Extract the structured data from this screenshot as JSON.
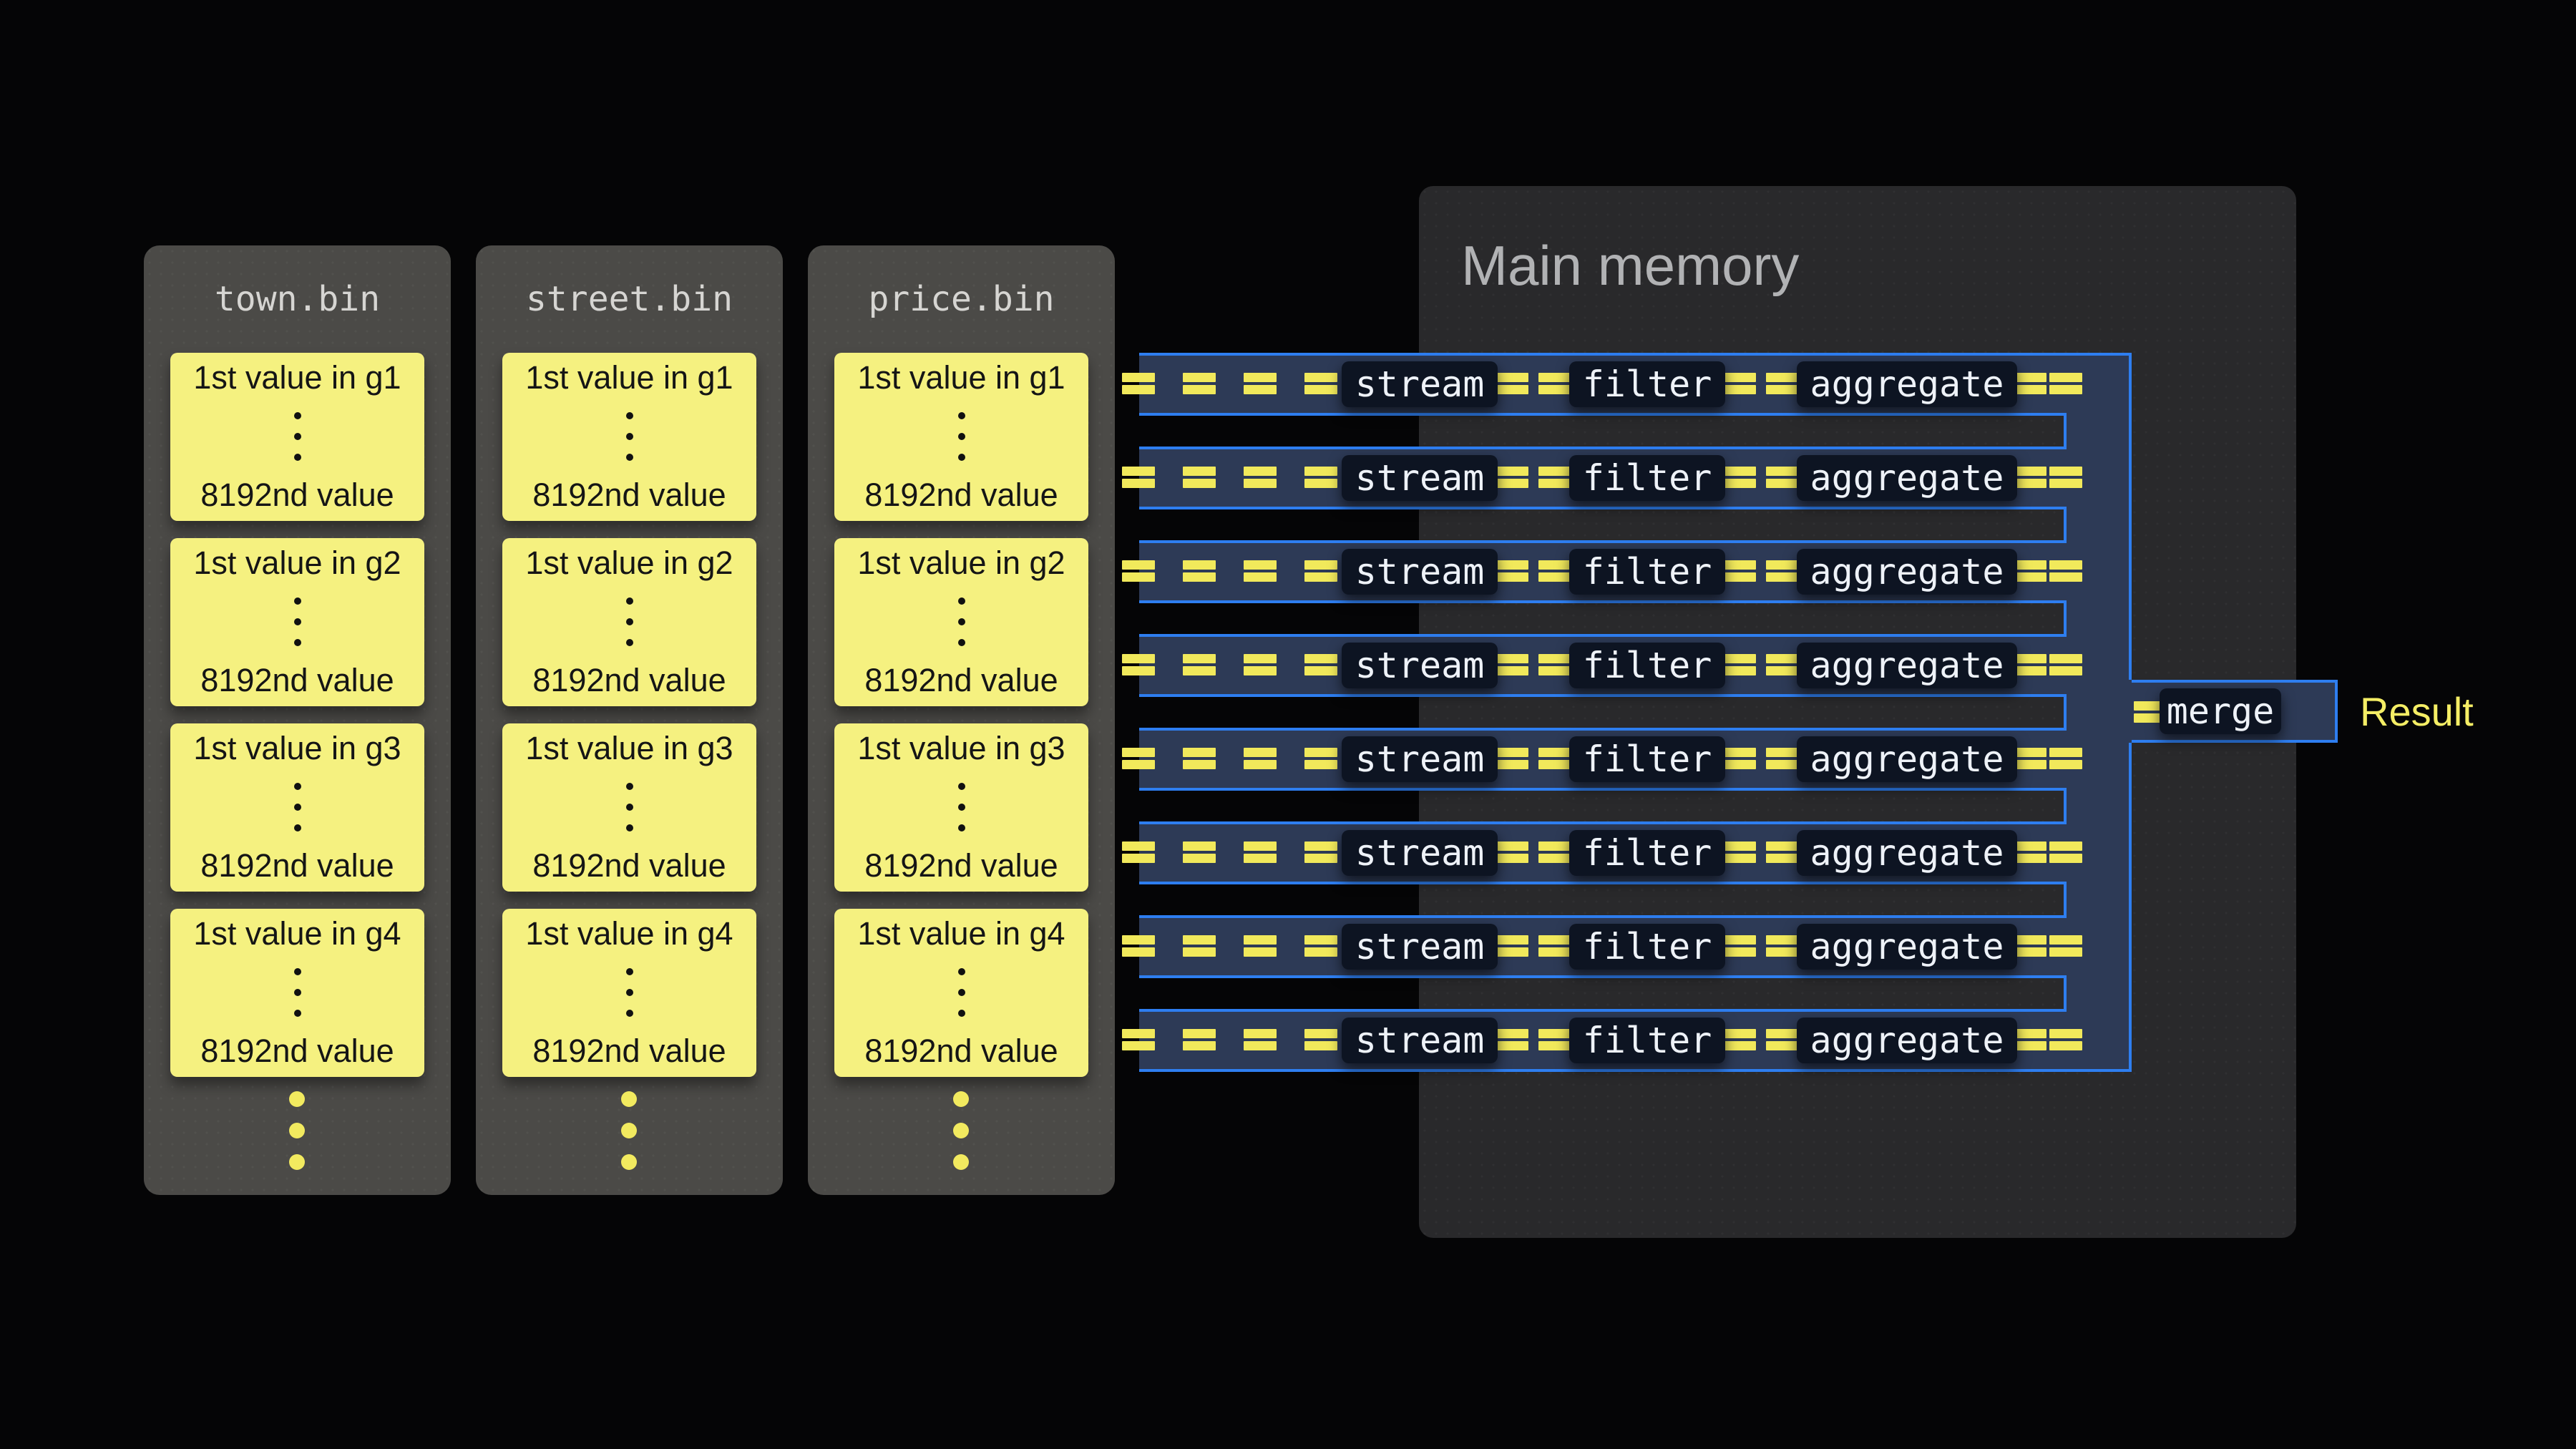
{
  "files": {
    "columns": [
      {
        "name": "town.bin",
        "groups": [
          {
            "first": "1st value in g1",
            "last": "8192nd value"
          },
          {
            "first": "1st value in g2",
            "last": "8192nd value"
          },
          {
            "first": "1st value in g3",
            "last": "8192nd value"
          },
          {
            "first": "1st value in g4",
            "last": "8192nd value"
          }
        ]
      },
      {
        "name": "street.bin",
        "groups": [
          {
            "first": "1st value in g1",
            "last": "8192nd value"
          },
          {
            "first": "1st value in g2",
            "last": "8192nd value"
          },
          {
            "first": "1st value in g3",
            "last": "8192nd value"
          },
          {
            "first": "1st value in g4",
            "last": "8192nd value"
          }
        ]
      },
      {
        "name": "price.bin",
        "groups": [
          {
            "first": "1st value in g1",
            "last": "8192nd value"
          },
          {
            "first": "1st value in g2",
            "last": "8192nd value"
          },
          {
            "first": "1st value in g3",
            "last": "8192nd value"
          },
          {
            "first": "1st value in g4",
            "last": "8192nd value"
          }
        ]
      }
    ]
  },
  "memory": {
    "title": "Main memory"
  },
  "pipeline": {
    "rows": [
      {
        "stages": [
          "stream",
          "filter",
          "aggregate"
        ]
      },
      {
        "stages": [
          "stream",
          "filter",
          "aggregate"
        ]
      },
      {
        "stages": [
          "stream",
          "filter",
          "aggregate"
        ]
      },
      {
        "stages": [
          "stream",
          "filter",
          "aggregate"
        ]
      },
      {
        "stages": [
          "stream",
          "filter",
          "aggregate"
        ]
      },
      {
        "stages": [
          "stream",
          "filter",
          "aggregate"
        ]
      },
      {
        "stages": [
          "stream",
          "filter",
          "aggregate"
        ]
      },
      {
        "stages": [
          "stream",
          "filter",
          "aggregate"
        ]
      }
    ],
    "merge_label": "merge",
    "result_label": "Result"
  },
  "colors": {
    "background": "#050506",
    "file_panel": "#4b4a47",
    "card_yellow": "#f5f180",
    "dash_yellow": "#f1e95b",
    "pipeline_navy": "#2d3a56",
    "pipeline_blue": "#2e7ef0",
    "chip_background": "#0d1422",
    "memory_panel": "#29292b",
    "result_yellow": "#f5ee65"
  }
}
